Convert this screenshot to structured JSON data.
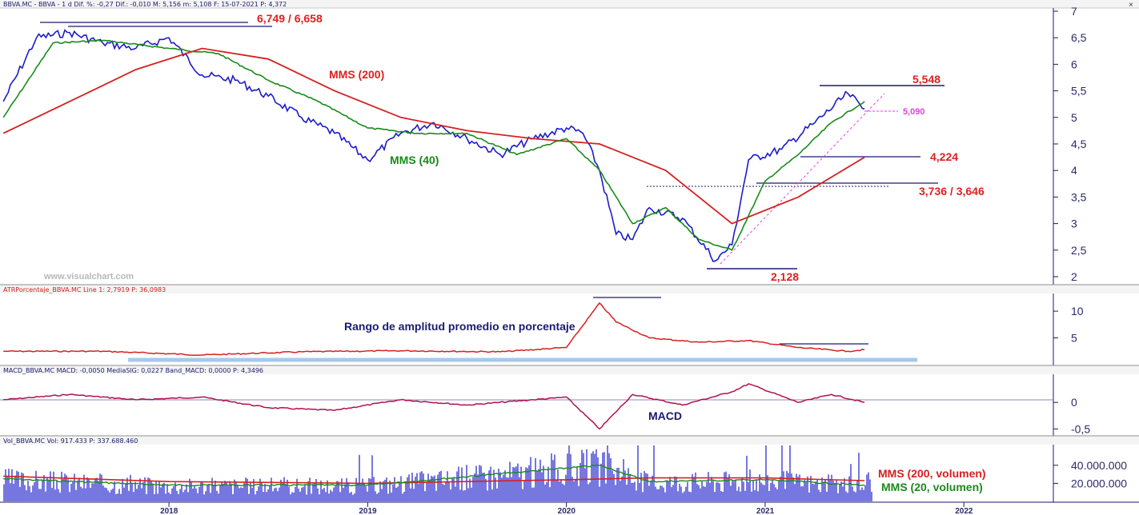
{
  "headers": {
    "price": "BBVA.MC - BBVA - 1 d  Dif. %: -0,27  Dif.: -0,010  M: 5,156  m: 5,108  F: 15-07-2021  P: 4,372",
    "atr": "ATRPorcentaje_BBVA.MC  Line 1: 2,7919  P: 36,0983",
    "macd": "MACD_BBVA.MC  MACD: -0,0050  MediaSIG: 0,0227  Band_MACD: 0,0000  P: 4,3496",
    "vol": "Vol_BBVA.MC  Vol: 917.433  P: 337.688.460"
  },
  "window_buttons": {
    "close": "×"
  },
  "watermark": "www.visualchart.com",
  "colors": {
    "price": "#1c1ccc",
    "mms200": "#d62020",
    "mms40": "#1a8a1a",
    "axis_text": "#2b2b6b",
    "annotation_red": "#e02020",
    "annotation_navy": "#1a1a6e",
    "pink": "#e040e0",
    "band": "#a8c8ec"
  },
  "annotations": {
    "top_resist": "6,749 / 6,658",
    "mms200_label": "MMS (200)",
    "mms40_label": "MMS (40)",
    "recent_high": "5,548",
    "pink_level": "5,090",
    "support1": "4,224",
    "support2": "3,736 / 3,646",
    "covid_low": "2,128",
    "atr_label": "Rango de amplitud promedio en porcentaje",
    "macd_label": "MACD",
    "vol200_label": "MMS (200, volumen)",
    "vol20_label": "MMS (20, volumen)"
  },
  "chart_data": [
    {
      "type": "line",
      "panel": "price",
      "ylim": [
        2,
        7
      ],
      "yticks": [
        "7",
        "6,5",
        "6",
        "5,5",
        "5",
        "4,5",
        "4",
        "3,5",
        "3",
        "2,5",
        "2"
      ],
      "xticks": [
        "2018",
        "2019",
        "2020",
        "2021",
        "2022"
      ],
      "series": [
        {
          "name": "",
          "role": "price",
          "x": [
            "2017-03",
            "2017-05",
            "2017-07",
            "2017-09",
            "2017-11",
            "2018-01",
            "2018-03",
            "2018-05",
            "2018-07",
            "2018-09",
            "2018-11",
            "2019-01",
            "2019-03",
            "2019-05",
            "2019-07",
            "2019-09",
            "2019-11",
            "2020-01",
            "2020-02",
            "2020-03",
            "2020-04",
            "2020-05",
            "2020-06",
            "2020-08",
            "2020-10",
            "2020-11",
            "2020-12",
            "2021-02",
            "2021-04",
            "2021-06",
            "2021-07"
          ],
          "y": [
            5.3,
            6.5,
            6.6,
            6.4,
            6.3,
            6.5,
            5.8,
            5.7,
            5.4,
            5.0,
            4.7,
            4.2,
            4.7,
            4.9,
            4.6,
            4.3,
            4.6,
            4.8,
            4.7,
            4.0,
            2.8,
            2.7,
            3.3,
            3.1,
            2.3,
            2.6,
            4.2,
            4.4,
            4.9,
            5.45,
            5.156
          ]
        },
        {
          "name": "MMS (200)",
          "role": "mms200",
          "x": [
            "2017-03",
            "2017-07",
            "2017-11",
            "2018-03",
            "2018-07",
            "2018-11",
            "2019-03",
            "2019-07",
            "2019-11",
            "2020-03",
            "2020-07",
            "2020-11",
            "2021-03",
            "2021-07"
          ],
          "y": [
            4.7,
            5.3,
            5.9,
            6.3,
            6.1,
            5.5,
            5.0,
            4.75,
            4.6,
            4.5,
            4.0,
            3.0,
            3.5,
            4.25
          ]
        },
        {
          "name": "MMS (40)",
          "role": "mms40",
          "x": [
            "2017-03",
            "2017-06",
            "2017-09",
            "2018-01",
            "2018-04",
            "2018-07",
            "2018-10",
            "2019-01",
            "2019-04",
            "2019-07",
            "2019-10",
            "2020-01",
            "2020-03",
            "2020-05",
            "2020-07",
            "2020-09",
            "2020-11",
            "2021-01",
            "2021-03",
            "2021-05",
            "2021-07"
          ],
          "y": [
            5.0,
            6.4,
            6.45,
            6.3,
            6.2,
            5.7,
            5.3,
            4.8,
            4.7,
            4.7,
            4.3,
            4.6,
            4.0,
            3.0,
            3.3,
            2.7,
            2.5,
            3.8,
            4.3,
            4.9,
            5.3
          ]
        }
      ],
      "levels": [
        6.749,
        6.658,
        5.548,
        5.09,
        4.224,
        3.736,
        3.646,
        2.128
      ]
    },
    {
      "type": "line",
      "panel": "atr",
      "ylim": [
        0,
        13
      ],
      "yticks": [
        "10",
        "5"
      ],
      "series": [
        {
          "name": "",
          "role": "atr",
          "x": [
            "2017-03",
            "2017-09",
            "2018-03",
            "2018-09",
            "2019-03",
            "2019-09",
            "2020-01",
            "2020-03",
            "2020-04",
            "2020-06",
            "2020-09",
            "2020-12",
            "2021-03",
            "2021-06",
            "2021-07"
          ],
          "y": [
            2.5,
            2.5,
            1.8,
            2.4,
            2.6,
            2.4,
            3.2,
            11.5,
            8.0,
            5.0,
            4.2,
            4.5,
            3.2,
            2.5,
            2.8
          ]
        }
      ]
    },
    {
      "type": "line",
      "panel": "macd",
      "ylim": [
        -0.6,
        0.5
      ],
      "yticks": [
        "0",
        "-0,5"
      ],
      "series": [
        {
          "name": "",
          "role": "macd",
          "x": [
            "2017-03",
            "2017-07",
            "2017-11",
            "2018-03",
            "2018-07",
            "2018-11",
            "2019-03",
            "2019-07",
            "2019-11",
            "2020-01",
            "2020-03",
            "2020-05",
            "2020-08",
            "2020-11",
            "2020-12",
            "2021-03",
            "2021-05",
            "2021-07"
          ],
          "y": [
            0.05,
            0.15,
            0.05,
            0.1,
            -0.1,
            -0.15,
            0.05,
            -0.05,
            0.05,
            0.1,
            -0.5,
            0.15,
            -0.05,
            0.2,
            0.35,
            0.0,
            0.15,
            0.0
          ]
        }
      ]
    },
    {
      "type": "bar",
      "panel": "volume",
      "ylim": [
        0,
        62000000
      ],
      "yticks": [
        "40.000.000",
        "20.000.000"
      ],
      "series": [
        {
          "name": "MMS (200, volumen)",
          "role": "vol200",
          "x": [
            "2017-03",
            "2018-01",
            "2019-01",
            "2020-01",
            "2020-06",
            "2021-01",
            "2021-07"
          ],
          "y": [
            28000000,
            22000000,
            20000000,
            24000000,
            26000000,
            26000000,
            23000000
          ]
        },
        {
          "name": "MMS (20, volumen)",
          "role": "vol20",
          "x": [
            "2017-03",
            "2018-01",
            "2019-01",
            "2020-03",
            "2020-06",
            "2021-01",
            "2021-07"
          ],
          "y": [
            25000000,
            18000000,
            18000000,
            40000000,
            22000000,
            24000000,
            18000000
          ]
        }
      ]
    }
  ]
}
